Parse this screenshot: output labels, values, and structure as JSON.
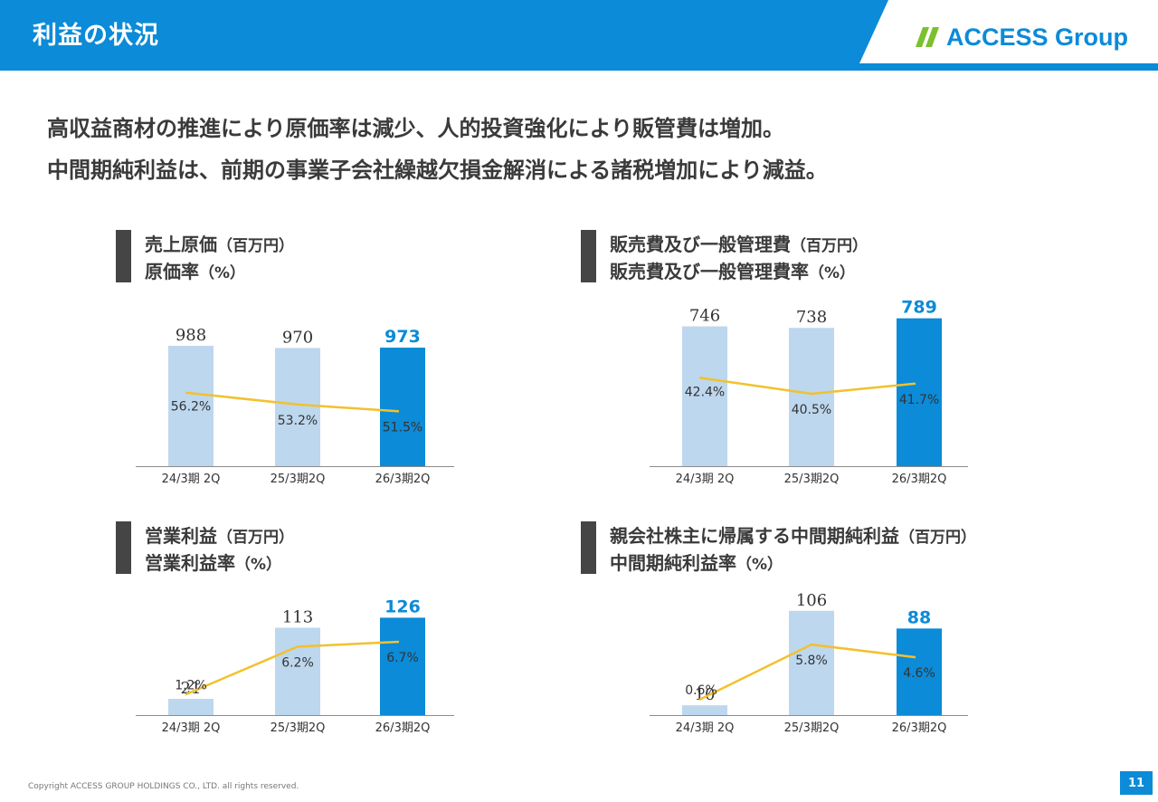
{
  "header": {
    "title": "利益の状況",
    "logo_text": "ACCESS Group",
    "brand_color": "#0b8bd8"
  },
  "lead": [
    "高収益商材の推進により原価率は減少、人的投資強化により販管費は増加。",
    "中間期純利益は、前期の事業子会社繰越欠損金解消による諸税増加により減益。"
  ],
  "sections": [
    {
      "line1": "売上原価",
      "line1_unit": "（百万円）",
      "line2": "原価率",
      "line2_unit": "（%）"
    },
    {
      "line1": "販売費及び一般管理費",
      "line1_unit": "（百万円）",
      "line2": "販売費及び一般管理費率",
      "line2_unit": "（%）"
    },
    {
      "line1": "営業利益",
      "line1_unit": "（百万円）",
      "line2": "営業利益率",
      "line2_unit": "（%）"
    },
    {
      "line1": "親会社株主に帰属する中間期純利益",
      "line1_unit": "（百万円）",
      "line2": "中間期純利益率",
      "line2_unit": "（%）"
    }
  ],
  "chart_data": [
    {
      "type": "bar",
      "title": "売上原価 / 原価率",
      "categories": [
        "24/3期 2Q",
        "25/3期2Q",
        "26/3期2Q"
      ],
      "values": [
        988,
        970,
        973
      ],
      "value_labels": [
        "988",
        "970",
        "973"
      ],
      "rates": [
        56.2,
        53.2,
        51.5
      ],
      "rate_labels": [
        "56.2%",
        "53.2%",
        "51.5%"
      ],
      "ylim": [
        0,
        1050
      ],
      "rate_lim": [
        40,
        65
      ]
    },
    {
      "type": "bar",
      "title": "販売費及び一般管理費 / 販売費及び一般管理費率",
      "categories": [
        "24/3期 2Q",
        "25/3期2Q",
        "26/3期2Q"
      ],
      "values": [
        746,
        738,
        789
      ],
      "value_labels": [
        "746",
        "738",
        "789"
      ],
      "rates": [
        42.4,
        40.5,
        41.7
      ],
      "rate_labels": [
        "42.4%",
        "40.5%",
        "41.7%"
      ],
      "ylim": [
        0,
        840
      ],
      "rate_lim": [
        33,
        48
      ]
    },
    {
      "type": "bar",
      "title": "営業利益 / 営業利益率",
      "categories": [
        "24/3期 2Q",
        "25/3期2Q",
        "26/3期2Q"
      ],
      "values": [
        21,
        113,
        126
      ],
      "value_labels": [
        "21",
        "113",
        "126"
      ],
      "rates": [
        1.2,
        6.2,
        6.7
      ],
      "rate_labels": [
        "1.2%",
        "6.2%",
        "6.7%"
      ],
      "ylim": [
        0,
        140
      ],
      "rate_lim": [
        0,
        8.5
      ]
    },
    {
      "type": "bar",
      "title": "親会社株主に帰属する中間期純利益 / 中間期純利益率",
      "categories": [
        "24/3期 2Q",
        "25/3期2Q",
        "26/3期2Q"
      ],
      "values": [
        10,
        106,
        88
      ],
      "value_labels": [
        "10",
        "106",
        "88"
      ],
      "rates": [
        0.6,
        5.8,
        4.6
      ],
      "rate_labels": [
        "0.6%",
        "5.8%",
        "4.6%"
      ],
      "ylim": [
        0,
        116
      ],
      "rate_lim": [
        0,
        8.2
      ]
    }
  ],
  "colors": {
    "bar_light": "#bdd7ee",
    "bar_highlight": "#0b8bd8",
    "line": "#f2c12e",
    "value_highlight": "#0b8bd8"
  },
  "footer": {
    "copyright": "Copyright ACCESS GROUP HOLDINGS CO., LTD. all rights reserved.",
    "page_number": "11"
  }
}
